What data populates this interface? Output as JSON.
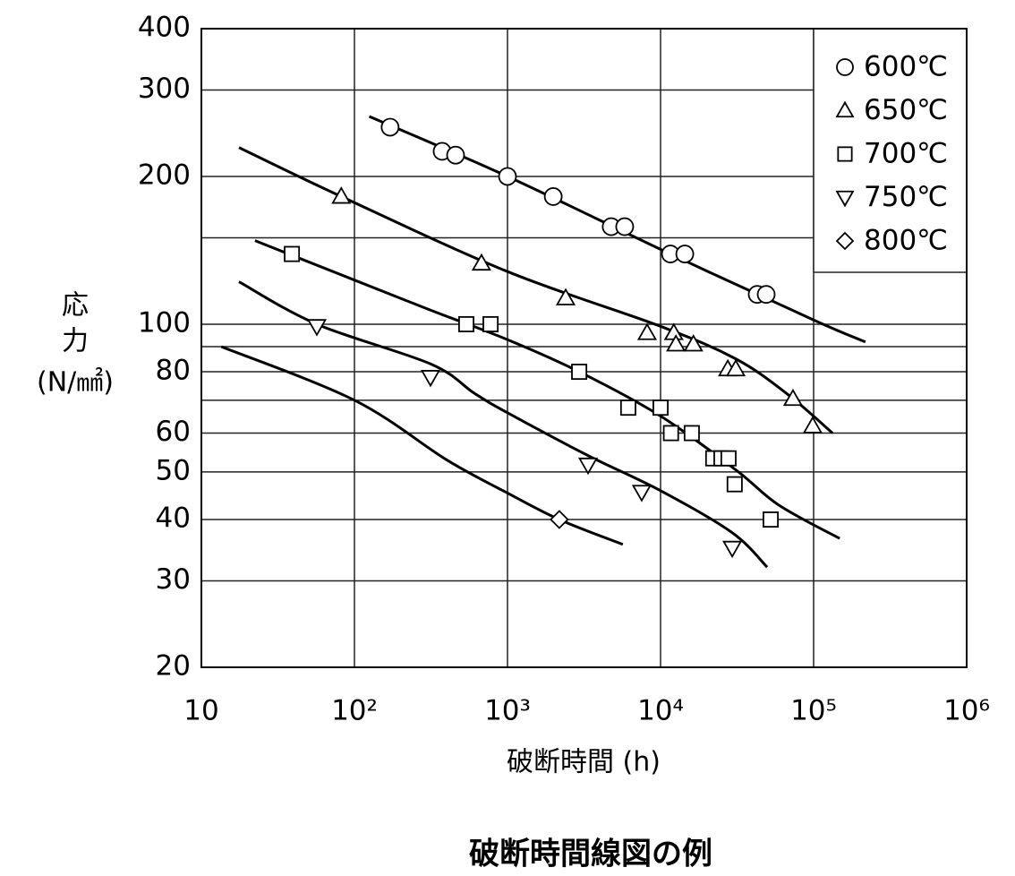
{
  "chart_data": {
    "type": "scatter",
    "ylabel": [
      "応",
      "力",
      "(N/㎟)"
    ],
    "xlabel": "破断時間 (h)",
    "caption": "破断時間線図の例",
    "xlog": true,
    "ylog": true,
    "grid": true,
    "legend": "upper right",
    "xlim": [
      10,
      1000000
    ],
    "xticks": [
      10,
      {
        "value": 100,
        "label": "10²"
      },
      {
        "value": 1000,
        "label": "10³"
      },
      {
        "value": 10000,
        "label": "10⁴"
      },
      {
        "value": 100000,
        "label": "10⁵"
      },
      {
        "value": 1000000,
        "label": "10⁶"
      }
    ],
    "ylim": [
      20,
      400
    ],
    "yticks": [
      20,
      30,
      40,
      50,
      60,
      80,
      100,
      200,
      300,
      400
    ],
    "yminor": [
      70,
      90,
      150
    ],
    "series": [
      {
        "name": "600℃",
        "marker": "circle",
        "color": "#000000",
        "x": [
          171,
          374,
          458,
          1000,
          1990,
          4760,
          5830,
          11600,
          14400,
          42800,
          49000
        ],
        "values": [
          252,
          225,
          221,
          200,
          182,
          158,
          158,
          139,
          139,
          115,
          115
        ]
      },
      {
        "name": "650℃",
        "marker": "triangle",
        "color": "#000000",
        "x": [
          82,
          676,
          2400,
          8170,
          12200,
          12600,
          16400,
          27500,
          31000,
          73300,
          98600
        ],
        "values": [
          182,
          133,
          113,
          96,
          96,
          91,
          91,
          81,
          81,
          70.5,
          62
        ]
      },
      {
        "name": "700℃",
        "marker": "square",
        "color": "#000000",
        "x": [
          39,
          538,
          775,
          2940,
          6150,
          10000,
          11700,
          16000,
          22100,
          25000,
          27800,
          30500,
          52400
        ],
        "values": [
          139,
          100,
          100,
          80,
          67.6,
          67.6,
          60,
          60,
          53.3,
          53.3,
          53.3,
          47.2,
          40
        ]
      },
      {
        "name": "750℃",
        "marker": "triangle-down",
        "color": "#000000",
        "x": [
          56.8,
          314,
          3360,
          7530,
          29400
        ],
        "values": [
          99,
          78,
          51.7,
          45.5,
          35
        ]
      },
      {
        "name": "800℃",
        "marker": "diamond",
        "color": "#000000",
        "x": [
          2180
        ],
        "values": [
          40
        ]
      }
    ],
    "curves": [
      {
        "x": [
          125,
          1000,
          11600,
          100000,
          218000
        ],
        "values": [
          265,
          200,
          139,
          102,
          92
        ]
      },
      {
        "x": [
          17.6,
          82,
          1000,
          10000,
          31000,
          67600,
          133000
        ],
        "values": [
          229,
          182,
          128,
          99,
          85,
          72,
          60
        ]
      },
      {
        "x": [
          22.4,
          100,
          310,
          1000,
          2940,
          10000,
          31000,
          59200,
          148000
        ],
        "values": [
          148,
          123,
          107,
          93,
          80,
          65,
          50.5,
          42.8,
          36.6
        ]
      },
      {
        "x": [
          17.6,
          56.8,
          314,
          608,
          1000,
          3360,
          10000,
          29400,
          49700
        ],
        "values": [
          122,
          100,
          83,
          72.3,
          66,
          54,
          45.8,
          37.6,
          32
        ]
      },
      {
        "x": [
          13.5,
          100,
          405,
          1000,
          2180,
          5670
        ],
        "values": [
          90,
          70,
          52.8,
          45.3,
          40,
          35.6
        ]
      }
    ]
  }
}
